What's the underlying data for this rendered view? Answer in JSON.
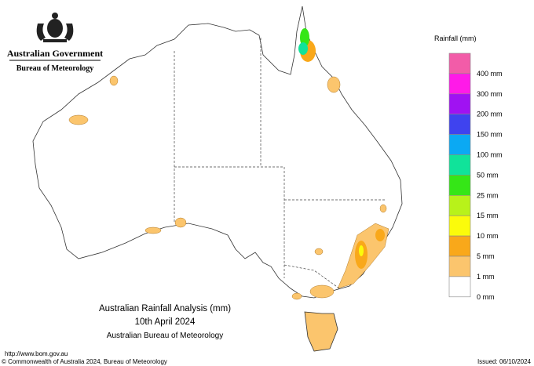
{
  "header": {
    "government": "Australian Government",
    "agency": "Bureau of Meteorology"
  },
  "legend": {
    "title": "Rainfall (mm)",
    "items": [
      {
        "color": "#f25ca8",
        "label": "400 mm"
      },
      {
        "color": "#ff1ae8",
        "label": "300 mm"
      },
      {
        "color": "#a012f2",
        "label": "200 mm"
      },
      {
        "color": "#3f43ef",
        "label": "150 mm"
      },
      {
        "color": "#0ba9f3",
        "label": "100 mm"
      },
      {
        "color": "#10e39a",
        "label": "50 mm"
      },
      {
        "color": "#35e617",
        "label": "25 mm"
      },
      {
        "color": "#b8f21a",
        "label": "15 mm"
      },
      {
        "color": "#fbfb0b",
        "label": "10 mm"
      },
      {
        "color": "#f9a81a",
        "label": "5 mm"
      },
      {
        "color": "#fbc56d",
        "label": "1 mm"
      },
      {
        "color": "#ffffff",
        "label": "0 mm"
      }
    ]
  },
  "map_title": {
    "line1": "Australian Rainfall Analysis (mm)",
    "line2": "10th April 2024",
    "line3": "Australian Bureau of Meteorology"
  },
  "footer": {
    "url": "http://www.bom.gov.au",
    "copyright": "© Commonwealth of Australia 2024, Bureau of Meteorology",
    "issued": "Issued: 06/10/2024"
  }
}
